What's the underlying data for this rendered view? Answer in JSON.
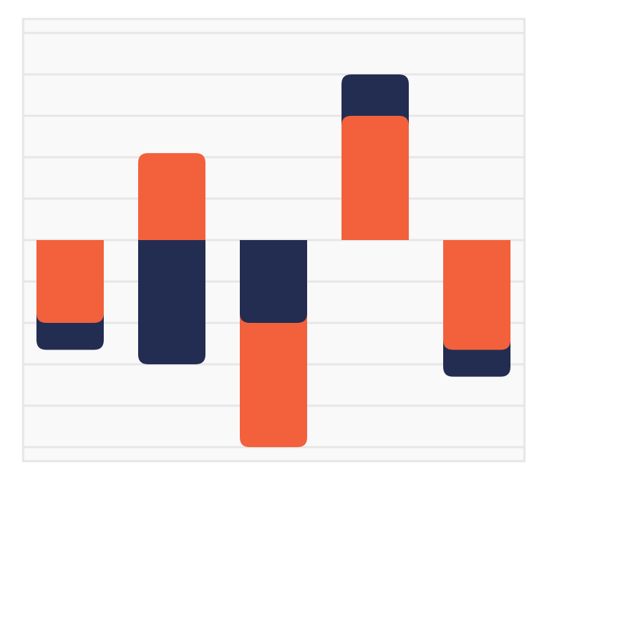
{
  "chart_data": {
    "type": "bar",
    "mode": "overlap",
    "categories": [
      null,
      null,
      null,
      null,
      null
    ],
    "series": [
      {
        "color": "#f2613c",
        "values": [
          -2,
          2.1,
          -5,
          3,
          -2.65
        ]
      },
      {
        "color": "#232d52",
        "values": [
          -2.65,
          -3,
          -2,
          4,
          -3.3
        ]
      }
    ],
    "ylim": [
      -5.34,
      5.34
    ],
    "yticks": [
      -5,
      -4,
      -3,
      -2,
      -1,
      0,
      1,
      2,
      3,
      4,
      5
    ],
    "grid": true
  }
}
